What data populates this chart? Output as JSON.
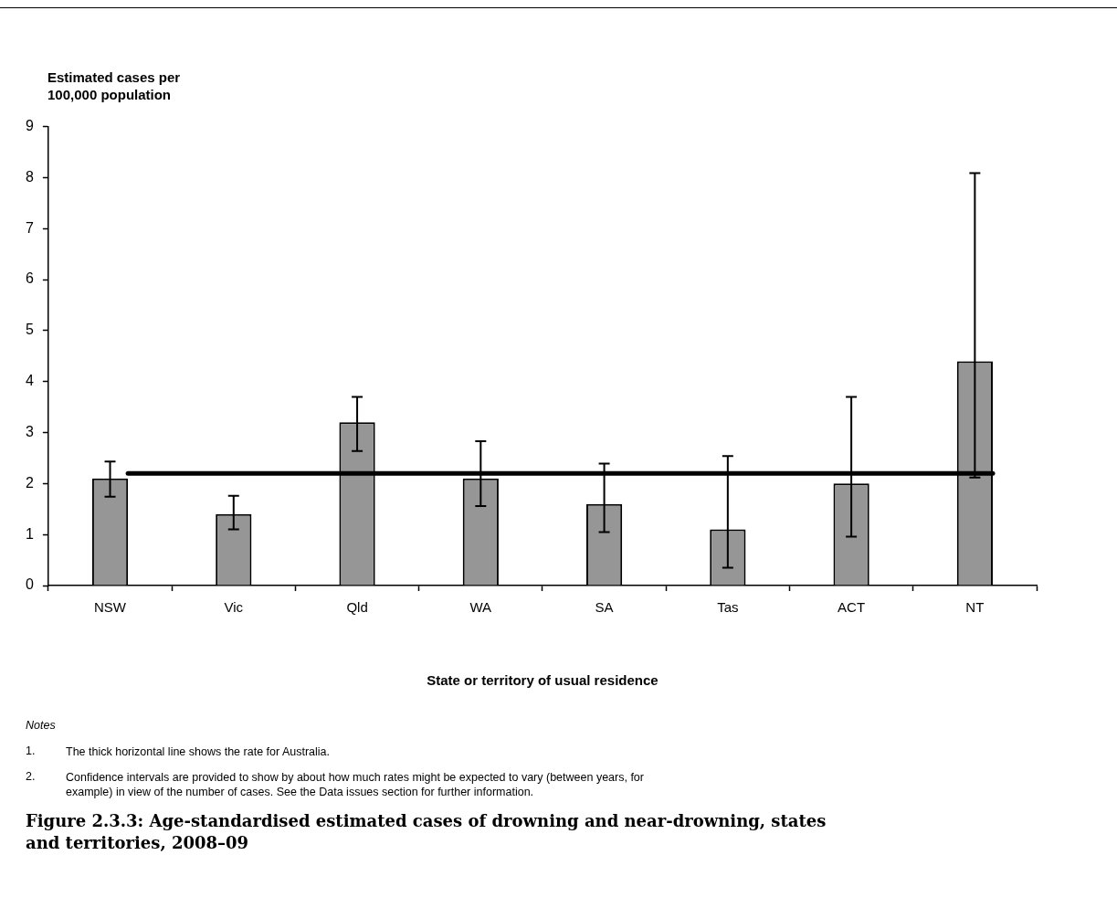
{
  "chart_data": {
    "type": "bar",
    "title": "Figure 2.3.3: Age-standardised estimated cases of drowning and near-drowning, states and territories, 2008–09",
    "xlabel": "State or territory of usual residence",
    "ylabel": "Estimated cases per 100,000 population",
    "categories": [
      "NSW",
      "Vic",
      "Qld",
      "WA",
      "SA",
      "Tas",
      "ACT",
      "NT"
    ],
    "values": [
      2.1,
      1.4,
      3.2,
      2.1,
      1.6,
      1.1,
      2.0,
      4.4
    ],
    "errors": [
      [
        1.74,
        2.43
      ],
      [
        1.1,
        1.76
      ],
      [
        2.64,
        3.7
      ],
      [
        1.56,
        2.83
      ],
      [
        1.05,
        2.39
      ],
      [
        0.35,
        2.54
      ],
      [
        0.96,
        3.7
      ],
      [
        2.12,
        8.09
      ]
    ],
    "color": "#969696",
    "ylim": [
      0,
      9
    ],
    "yticks": [
      0,
      1,
      2,
      3,
      4,
      5,
      6,
      7,
      8,
      9
    ],
    "grid": false,
    "legend": false,
    "ref_lines": [
      {
        "axis": "y",
        "value": 2.2,
        "color": "#000000"
      }
    ],
    "annotations": [
      "Notes",
      "1. The thick horizontal line shows the rate for Australia.",
      "2. Confidence intervals are provided to show by about how much rates might be expected to vary (between years, for example) in view of the number of cases. See the Data issues section for further information."
    ]
  }
}
